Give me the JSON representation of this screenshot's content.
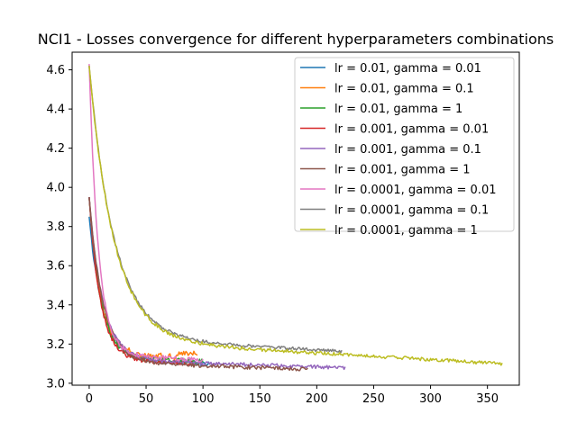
{
  "chart_data": {
    "type": "line",
    "title": "NCI1 - Losses convergence for different hyperparameters combinations",
    "xlabel": "",
    "ylabel": "",
    "xlim": [
      -15,
      378
    ],
    "ylim": [
      2.99,
      4.69
    ],
    "xticks": [
      0,
      50,
      100,
      150,
      200,
      250,
      300,
      350
    ],
    "yticks": [
      3.0,
      3.2,
      3.4,
      3.6,
      3.8,
      4.0,
      4.2,
      4.4,
      4.6
    ],
    "ytick_labels": [
      "3.0",
      "3.2",
      "3.4",
      "3.6",
      "3.8",
      "4.0",
      "4.2",
      "4.4",
      "4.6"
    ],
    "grid": false,
    "legend_position": "top-right",
    "series": [
      {
        "name": "lr = 0.01, gamma = 0.01",
        "color": "#1f77b4",
        "length": 106,
        "start": 3.85,
        "plateau": 3.12,
        "decay": 12,
        "tail_slope": 0.0002,
        "noise": 0.012,
        "hump": 0
      },
      {
        "name": "lr = 0.01, gamma = 0.1",
        "color": "#ff7f0e",
        "length": 95,
        "start": 3.95,
        "plateau": 3.15,
        "decay": 10,
        "tail_slope": 0.0002,
        "noise": 0.015,
        "hump": 0.02
      },
      {
        "name": "lr = 0.01, gamma = 1",
        "color": "#2ca02c",
        "length": 100,
        "start": 3.95,
        "plateau": 3.13,
        "decay": 10,
        "tail_slope": 0.0002,
        "noise": 0.014,
        "hump": 0
      },
      {
        "name": "lr = 0.001, gamma = 0.01",
        "color": "#d62728",
        "length": 93,
        "start": 3.95,
        "plateau": 3.12,
        "decay": 10,
        "tail_slope": 0.0002,
        "noise": 0.012,
        "hump": 0
      },
      {
        "name": "lr = 0.001, gamma = 0.1",
        "color": "#9467bd",
        "length": 225,
        "start": 3.95,
        "plateau": 3.12,
        "decay": 12,
        "tail_slope": 0.00018,
        "noise": 0.01,
        "hump": 0
      },
      {
        "name": "lr = 0.001, gamma = 1",
        "color": "#8c564b",
        "length": 192,
        "start": 3.95,
        "plateau": 3.11,
        "decay": 12,
        "tail_slope": 0.0002,
        "noise": 0.01,
        "hump": 0
      },
      {
        "name": "lr = 0.0001, gamma = 0.01",
        "color": "#e377c2",
        "length": 100,
        "start": 4.63,
        "plateau": 3.15,
        "decay": 8,
        "tail_slope": 0.0003,
        "noise": 0.012,
        "hump": 0
      },
      {
        "name": "lr = 0.0001, gamma = 0.1",
        "color": "#7f7f7f",
        "length": 222,
        "start": 4.62,
        "plateau": 3.23,
        "decay": 22,
        "tail_slope": 0.0003,
        "noise": 0.008,
        "hump": 0
      },
      {
        "name": "lr = 0.0001, gamma = 1",
        "color": "#bcbd22",
        "length": 363,
        "start": 4.62,
        "plateau": 3.22,
        "decay": 22,
        "tail_slope": 0.00033,
        "noise": 0.009,
        "hump": 0
      }
    ]
  }
}
